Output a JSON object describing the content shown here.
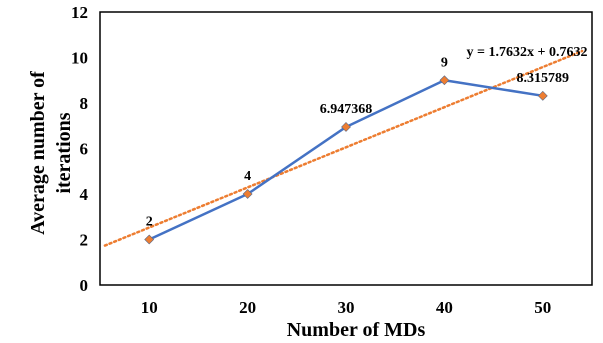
{
  "chart_data": {
    "type": "line",
    "categories": [
      "10",
      "20",
      "30",
      "40",
      "50"
    ],
    "x": [
      10,
      20,
      30,
      40,
      50
    ],
    "series": [
      {
        "values": [
          2,
          4,
          6.947368,
          9,
          8.315789
        ],
        "data_labels": [
          "2",
          "4",
          "6.947368",
          "9",
          "8.315789"
        ],
        "color": "#4472C4",
        "marker_color": "#ED7D31"
      }
    ],
    "trendline": {
      "type": "linear",
      "slope": 1.7632,
      "intercept": 0.7632,
      "equation": "y = 1.7632x + 0.7632",
      "color": "#ED7D31",
      "style": "dotted"
    },
    "xlabel": "Number of MDs",
    "ylabel_lines": [
      "Average number of",
      "iterations"
    ],
    "ylim": [
      0,
      12
    ],
    "yticks": [
      "0",
      "2",
      "4",
      "6",
      "8",
      "10",
      "12"
    ],
    "grid": false,
    "legend": "none"
  }
}
